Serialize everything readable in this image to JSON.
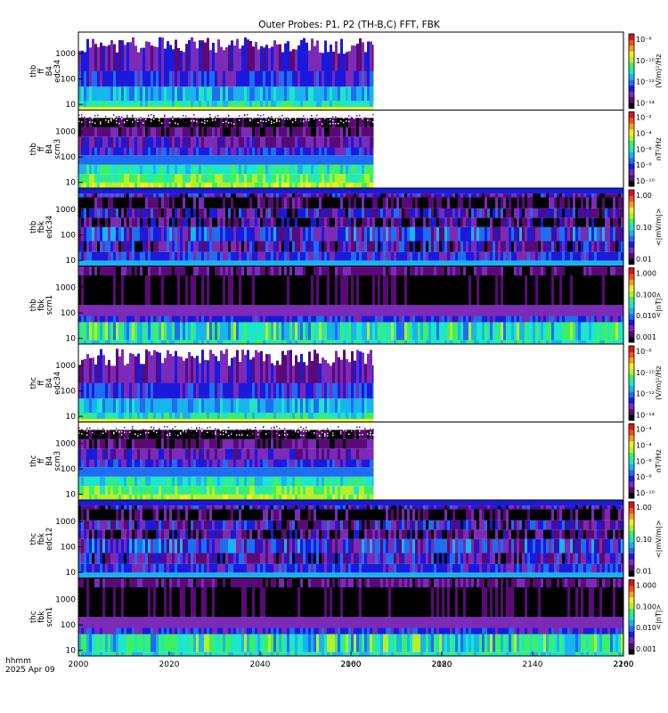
{
  "title": "Outer Probes: P1, P2 (TH-B,C) FFT, FBK",
  "footer": {
    "line1": "hhmm",
    "line2": "2025 Apr 09"
  },
  "colors": {
    "spectrum": [
      "#000000",
      "#5a0a78",
      "#7b2bb8",
      "#1a1adc",
      "#1e6ef0",
      "#19b4f0",
      "#1ee6c8",
      "#3cf064",
      "#b4f028",
      "#f0f01e",
      "#f0a01e",
      "#f0501e",
      "#dc1414"
    ],
    "background": "#ffffff"
  },
  "chart_data": {
    "type": "heatmap",
    "x": {
      "ticks": [
        "2000",
        "2020",
        "2040",
        "2060",
        "2080",
        "2100",
        "2120",
        "2140",
        "2160",
        "2180",
        "2200"
      ],
      "range": [
        "2000",
        "2200"
      ],
      "label": "hhmm"
    },
    "panels": [
      {
        "id": "thb-ff-b4-edc34",
        "ylabel": [
          "thb",
          "ff",
          "B4",
          "edc34"
        ],
        "yticks": [
          "10",
          "100",
          "1000"
        ],
        "y_scale": "log",
        "data_end": "2105",
        "kind": "fft-e",
        "colorbar": {
          "ticks": [
            "10⁻⁸",
            "10⁻¹⁰",
            "10⁻¹²",
            "10⁻¹⁴"
          ],
          "title": "(V/m)²/Hz"
        }
      },
      {
        "id": "thb-ff-b4-scm3",
        "ylabel": [
          "thb",
          "ff",
          "B4",
          "scm3"
        ],
        "yticks": [
          "10",
          "100",
          "1000"
        ],
        "y_scale": "log",
        "data_end": "2105",
        "kind": "fft-b",
        "colorbar": {
          "ticks": [
            "10⁻²",
            "10⁻⁴",
            "10⁻⁶",
            "10⁻⁸",
            "10⁻¹⁰"
          ],
          "title": "nT²/Hz"
        }
      },
      {
        "id": "thb-fbk-edc34",
        "ylabel": [
          "thb",
          "fbk",
          "edc34"
        ],
        "yticks": [
          "10",
          "100",
          "1000"
        ],
        "y_scale": "log",
        "data_end": "2200",
        "kind": "fbk-e",
        "colorbar": {
          "ticks": [
            "1.00",
            "0.10",
            "0.01"
          ],
          "title": "<|mV/m|>"
        }
      },
      {
        "id": "thb-fbk-scm1",
        "ylabel": [
          "thb",
          "fbk",
          "scm1"
        ],
        "yticks": [
          "10",
          "100",
          "1000"
        ],
        "y_scale": "log",
        "data_end": "2200",
        "kind": "fbk-b",
        "colorbar": {
          "ticks": [
            "1.000",
            "0.100",
            "0.010",
            "0.001"
          ],
          "title": "<|nT|>"
        }
      },
      {
        "id": "thc-ff-b4-edc34",
        "ylabel": [
          "thc",
          "ff",
          "B4",
          "edc34"
        ],
        "yticks": [
          "10",
          "100",
          "1000"
        ],
        "y_scale": "log",
        "data_end": "2105",
        "kind": "fft-e",
        "colorbar": {
          "ticks": [
            "10⁻⁸",
            "10⁻¹⁰",
            "10⁻¹²",
            "10⁻¹⁴"
          ],
          "title": "(V/m)²/Hz"
        }
      },
      {
        "id": "thc-ff-b4-scm3",
        "ylabel": [
          "thc",
          "ff",
          "B4",
          "scm3"
        ],
        "yticks": [
          "10",
          "100",
          "1000"
        ],
        "y_scale": "log",
        "data_end": "2105",
        "kind": "fft-b",
        "colorbar": {
          "ticks": [
            "10⁻³",
            "10⁻⁴",
            "10⁻⁶",
            "10⁻⁸",
            "10⁻¹⁰"
          ],
          "title": "nT²/Hz"
        }
      },
      {
        "id": "thc-fbk-edc12",
        "ylabel": [
          "thc",
          "fbk",
          "edc12"
        ],
        "yticks": [
          "10",
          "100",
          "1000"
        ],
        "y_scale": "log",
        "data_end": "2200",
        "kind": "fbk-e",
        "colorbar": {
          "ticks": [
            "1.00",
            "0.10",
            "0.01"
          ],
          "title": "<|mV/m|>"
        }
      },
      {
        "id": "thc-fbk-scm1",
        "ylabel": [
          "thc",
          "fbk",
          "scm1"
        ],
        "yticks": [
          "10",
          "100",
          "1000"
        ],
        "y_scale": "log",
        "data_end": "2200",
        "kind": "fbk-b",
        "colorbar": {
          "ticks": [
            "1.000",
            "0.100",
            "0.010",
            "0.001"
          ],
          "title": "<|nT|>"
        }
      }
    ]
  }
}
